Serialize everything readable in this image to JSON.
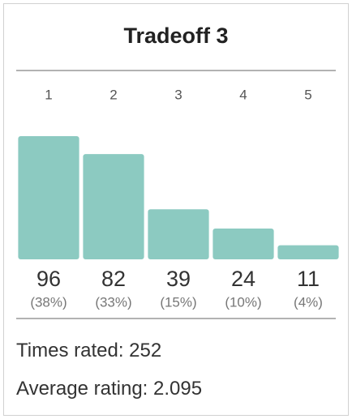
{
  "chart_data": {
    "type": "bar",
    "title": "Tradeoff 3",
    "categories": [
      "1",
      "2",
      "3",
      "4",
      "5"
    ],
    "values": [
      96,
      82,
      39,
      24,
      11
    ],
    "percent_labels": [
      "(38%)",
      "(33%)",
      "(15%)",
      "(10%)",
      "(4%)"
    ],
    "color": "#8ccac1",
    "times_rated_label": "Times rated:",
    "times_rated": 252,
    "average_rating_label": "Average rating:",
    "average_rating": 2.095
  }
}
